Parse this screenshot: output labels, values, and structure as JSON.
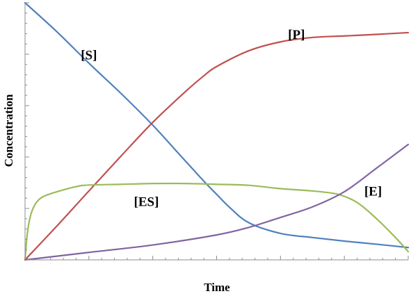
{
  "chart_data": {
    "type": "line",
    "title": "",
    "xlabel": "Time",
    "ylabel": "Concentration",
    "xlim": [
      0,
      60
    ],
    "ylim": [
      0,
      100
    ],
    "grid": false,
    "legend": "none",
    "series": [
      {
        "name": "[S]",
        "color": "#4f81bd",
        "x": [
          0,
          5,
          10,
          15,
          20,
          24,
          28,
          30,
          32,
          35,
          40,
          45,
          50,
          55,
          60
        ],
        "y": [
          100,
          88.7,
          76.5,
          64.8,
          52.4,
          41.5,
          30.6,
          25.5,
          20.5,
          14.5,
          10.3,
          8.7,
          7.3,
          6.1,
          4.8
        ]
      },
      {
        "name": "[P]",
        "color": "#c0504d",
        "x": [
          0,
          5,
          10,
          15,
          20,
          25,
          28,
          30,
          35,
          40,
          45,
          50,
          55,
          60
        ],
        "y": [
          0,
          13.2,
          26.8,
          40.3,
          53.5,
          65.2,
          71.6,
          75.2,
          81.3,
          84.8,
          86.5,
          87.1,
          87.7,
          88.4
        ]
      },
      {
        "name": "[ES]",
        "color": "#9bbb59",
        "x": [
          0,
          0.3,
          0.7,
          1.2,
          2,
          3,
          5,
          8,
          10,
          15,
          20,
          25,
          30,
          35,
          40,
          45,
          49,
          52,
          55,
          58,
          60
        ],
        "y": [
          0,
          9,
          15.5,
          19.7,
          23,
          24.8,
          26.5,
          28.5,
          29.1,
          29.4,
          29.7,
          29.7,
          29.4,
          29.0,
          27.7,
          26.8,
          25.5,
          22.3,
          16.1,
          8.7,
          3.2
        ]
      },
      {
        "name": "[E]",
        "color": "#8064a2",
        "x": [
          0,
          10,
          20,
          30,
          35,
          40,
          45,
          50,
          55,
          60
        ],
        "y": [
          0,
          2.9,
          5.8,
          9.7,
          12.6,
          16.5,
          20.6,
          26.5,
          35.6,
          44.9
        ]
      }
    ]
  }
}
